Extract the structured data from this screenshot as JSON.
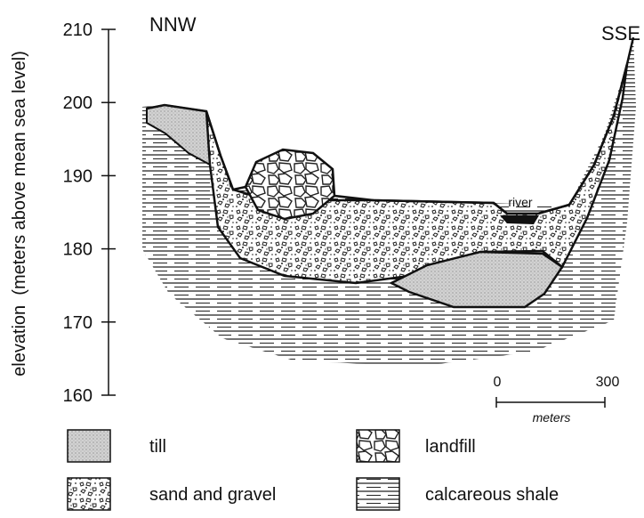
{
  "axis": {
    "label": "elevation  (meters above mean sea level)",
    "ticks": [
      210,
      200,
      190,
      180,
      170,
      160
    ]
  },
  "section": {
    "left": "NNW",
    "right": "SSE",
    "river": "river"
  },
  "scale": {
    "start": "0",
    "end": "300",
    "unit": "meters"
  },
  "legend": [
    "till",
    "landfill",
    "sand and gravel",
    "calcareous shale"
  ]
}
